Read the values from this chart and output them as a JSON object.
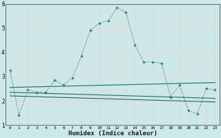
{
  "xlabel": "Humidex (Indice chaleur)",
  "background_color": "#cce8e8",
  "grid_color": "#f0d0d0",
  "line_color": "#1a6e6a",
  "xlim": [
    -0.5,
    23.5
  ],
  "ylim": [
    1,
    6
  ],
  "yticks": [
    1,
    2,
    3,
    4,
    5,
    6
  ],
  "xticks": [
    0,
    1,
    2,
    3,
    4,
    5,
    6,
    7,
    8,
    9,
    10,
    11,
    12,
    13,
    14,
    15,
    16,
    17,
    18,
    19,
    20,
    21,
    22,
    23
  ],
  "series1_x": [
    0,
    1,
    2,
    3,
    4,
    5,
    6,
    7,
    8,
    9,
    10,
    11,
    12,
    13,
    14,
    15,
    16,
    17,
    18,
    19,
    20,
    21,
    22,
    23
  ],
  "series1_y": [
    3.25,
    1.4,
    2.45,
    2.35,
    2.35,
    2.85,
    2.65,
    2.95,
    3.85,
    4.9,
    5.2,
    5.3,
    5.85,
    5.65,
    4.3,
    3.6,
    3.6,
    3.55,
    2.15,
    2.65,
    1.6,
    1.45,
    2.5,
    2.45
  ],
  "series2_x": [
    0,
    23
  ],
  "series2_y": [
    2.55,
    2.75
  ],
  "series3_x": [
    0,
    23
  ],
  "series3_y": [
    2.35,
    2.1
  ],
  "series4_x": [
    0,
    23
  ],
  "series4_y": [
    2.2,
    1.95
  ]
}
